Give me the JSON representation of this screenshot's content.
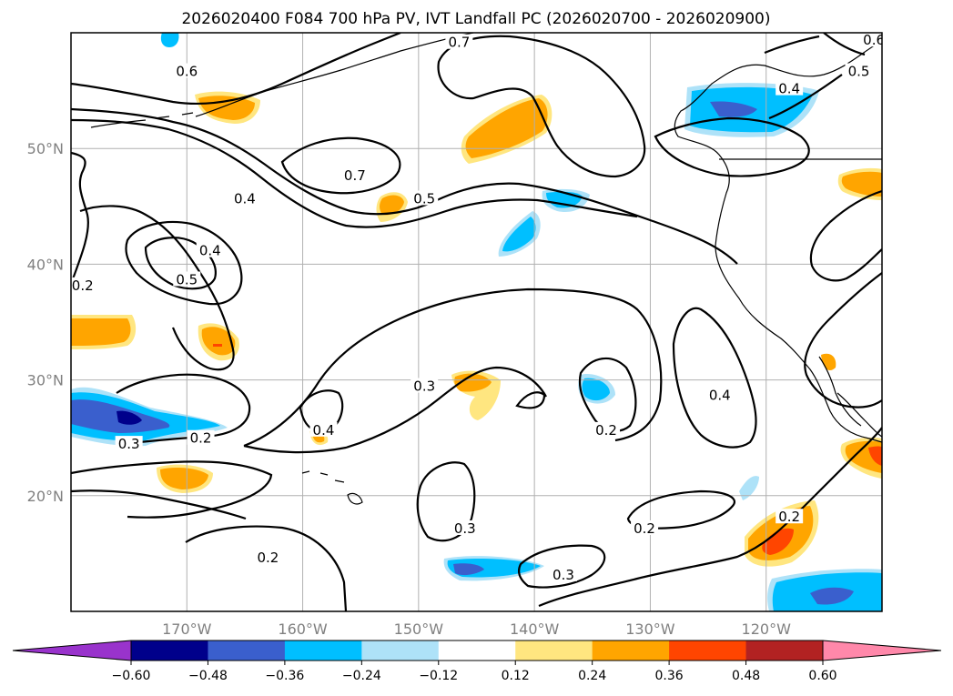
{
  "chart_data": {
    "type": "contour-map",
    "title": "2026020400 F084 700 hPa PV, IVT Landfall PC (2026020700 - 2026020900)",
    "xlim": [
      -180,
      -110
    ],
    "ylim": [
      10,
      60
    ],
    "x_ticks": [
      -170,
      -160,
      -150,
      -140,
      -130,
      -120
    ],
    "x_tick_labels": [
      "170°W",
      "160°W",
      "150°W",
      "140°W",
      "130°W",
      "120°W"
    ],
    "y_ticks": [
      20,
      30,
      40,
      50
    ],
    "y_tick_labels": [
      "20°N",
      "30°N",
      "40°N",
      "50°N"
    ],
    "grid": true,
    "colorbar": {
      "orientation": "horizontal",
      "extend": "both",
      "boundaries": [
        -0.6,
        -0.48,
        -0.36,
        -0.24,
        -0.12,
        0.12,
        0.24,
        0.36,
        0.48,
        0.6
      ],
      "tick_labels": [
        "−0.60",
        "−0.48",
        "−0.36",
        "−0.24",
        "−0.12",
        "0.12",
        "0.24",
        "0.36",
        "0.48",
        "0.60"
      ],
      "colors": [
        "#9933cc",
        "#00008b",
        "#3a5fcd",
        "#00bfff",
        "#aee2f8",
        "#ffffff",
        "#ffe680",
        "#ffa500",
        "#ff4500",
        "#b22222",
        "#ff88aa"
      ]
    },
    "contour_labels": [
      {
        "text": "0.6",
        "lon": -170.0,
        "lat": 56.5
      },
      {
        "text": "0.7",
        "lon": -146.5,
        "lat": 59.0
      },
      {
        "text": "0.5",
        "lon": -112.0,
        "lat": 56.5
      },
      {
        "text": "0.6",
        "lon": -110.7,
        "lat": 59.2
      },
      {
        "text": "0.4",
        "lon": -118.0,
        "lat": 55.0
      },
      {
        "text": "0.7",
        "lon": -155.5,
        "lat": 47.5
      },
      {
        "text": "0.4",
        "lon": -165.0,
        "lat": 45.5
      },
      {
        "text": "0.5",
        "lon": -149.5,
        "lat": 45.5
      },
      {
        "text": "0.4",
        "lon": -168.0,
        "lat": 41.0
      },
      {
        "text": "0.5",
        "lon": -170.0,
        "lat": 38.5
      },
      {
        "text": "0.2",
        "lon": -179.0,
        "lat": 38.0
      },
      {
        "text": "0.3",
        "lon": -149.5,
        "lat": 29.3
      },
      {
        "text": "0.4",
        "lon": -158.2,
        "lat": 25.5
      },
      {
        "text": "0.2",
        "lon": -168.8,
        "lat": 24.8
      },
      {
        "text": "0.3",
        "lon": -175.0,
        "lat": 24.3
      },
      {
        "text": "0.2",
        "lon": -133.8,
        "lat": 25.5
      },
      {
        "text": "0.4",
        "lon": -124.0,
        "lat": 28.5
      },
      {
        "text": "0.2",
        "lon": -118.0,
        "lat": 18.0
      },
      {
        "text": "0.3",
        "lon": -146.0,
        "lat": 17.0
      },
      {
        "text": "0.2",
        "lon": -130.5,
        "lat": 17.0
      },
      {
        "text": "0.2",
        "lon": -163.0,
        "lat": 14.5
      },
      {
        "text": "0.3",
        "lon": -137.5,
        "lat": 13.0
      }
    ]
  }
}
